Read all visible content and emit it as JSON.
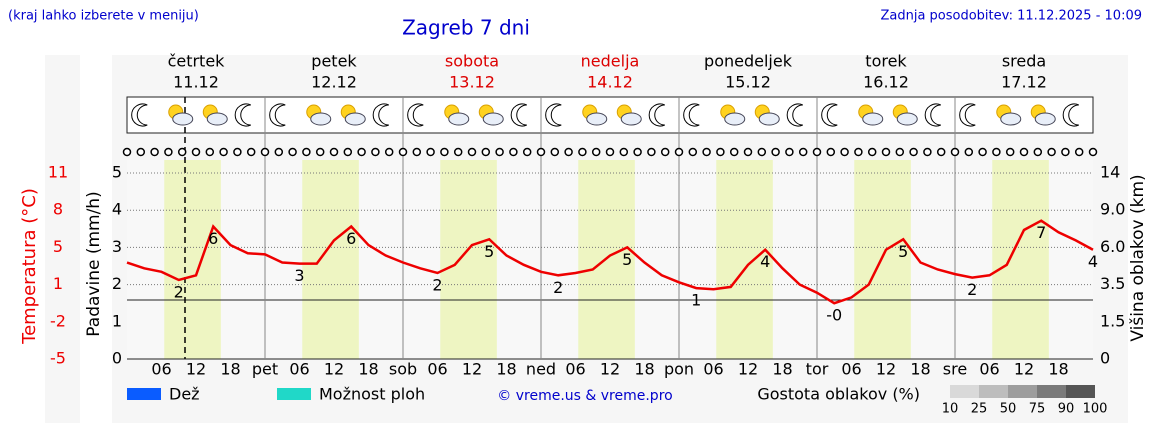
{
  "header": {
    "hint": "(kraj lahko izberete v meniju)",
    "title": "Zagreb 7 dni",
    "updated": "Zadnja posodobitev: 11.12.2025 - 10:09"
  },
  "days": [
    {
      "name": "četrtek",
      "date": "11.12",
      "color": "#000000"
    },
    {
      "name": "petek",
      "date": "12.12",
      "color": "#000000"
    },
    {
      "name": "sobota",
      "date": "13.12",
      "color": "#dd0000"
    },
    {
      "name": "nedelja",
      "date": "14.12",
      "color": "#dd0000"
    },
    {
      "name": "ponedeljek",
      "date": "15.12",
      "color": "#000000"
    },
    {
      "name": "torek",
      "date": "16.12",
      "color": "#000000"
    },
    {
      "name": "sreda",
      "date": "17.12",
      "color": "#000000"
    }
  ],
  "hours": [
    "06",
    "12",
    "18"
  ],
  "day_abbr": [
    "pet",
    "sob",
    "ned",
    "pon",
    "tor",
    "sre"
  ],
  "legend": {
    "rain": "Dež",
    "showers": "Možnost ploh",
    "credit": "© vreme.us & vreme.pro",
    "cloud_title": "Gostota oblakov (%)",
    "cloud_levels": [
      10,
      25,
      50,
      75,
      90,
      100
    ],
    "cloud_colors": [
      "#d9d9d9",
      "#bdbdbd",
      "#9d9d9d",
      "#7a7a7a",
      "#555555"
    ],
    "rain_color": "#0a5cff",
    "showers_color": "#20d8c8"
  },
  "chart_data": {
    "type": "line",
    "series": [
      {
        "name": "Temperatura (°C)",
        "color": "#ee0000",
        "values": [
          3.3,
          2.8,
          2.5,
          1.8,
          2.2,
          6.4,
          4.8,
          4.1,
          4.0,
          3.3,
          3.2,
          3.2,
          5.2,
          6.4,
          4.8,
          3.9,
          3.3,
          2.8,
          2.4,
          3.1,
          4.8,
          5.3,
          3.9,
          3.1,
          2.5,
          2.2,
          2.4,
          2.7,
          3.9,
          4.6,
          3.3,
          2.2,
          1.6,
          1.1,
          1.0,
          1.2,
          3.1,
          4.4,
          2.8,
          1.4,
          0.7,
          -0.2,
          0.3,
          1.4,
          4.4,
          5.3,
          3.3,
          2.7,
          2.3,
          2.0,
          2.2,
          3.1,
          6.1,
          6.9,
          5.9,
          5.2,
          4.4
        ],
        "value_labels": [
          null,
          null,
          null,
          "2",
          null,
          "6",
          null,
          null,
          null,
          null,
          "3",
          null,
          null,
          "6",
          null,
          null,
          null,
          null,
          "2",
          null,
          null,
          "5",
          null,
          null,
          null,
          "2",
          null,
          null,
          null,
          "5",
          null,
          null,
          null,
          "1",
          null,
          null,
          null,
          "4",
          null,
          null,
          null,
          "-0",
          null,
          null,
          null,
          "5",
          null,
          null,
          null,
          "2",
          null,
          null,
          null,
          "7",
          null,
          null,
          "4"
        ]
      }
    ],
    "ylabel": "Temperatura (°C)",
    "ylim": [
      -5,
      11
    ],
    "yticks": [
      11,
      {
        "value": 7.8,
        "label": "8"
      },
      {
        "value": 4.6,
        "label": "5"
      },
      {
        "value": 1.4,
        "label": "1"
      },
      {
        "value": -1.8,
        "label": "-2"
      },
      -5
    ],
    "precip_label": "Padavine (mm/h)",
    "precip_ylim": [
      0,
      5
    ],
    "precip_yticks": [
      5,
      4,
      3,
      2,
      1,
      0
    ],
    "cloud_label": "Višina oblakov (km)",
    "cloud_yticks": [
      14,
      {
        "value": 9,
        "label": "9.0"
      },
      {
        "value": 6,
        "label": "6.0"
      },
      3.5,
      1.5,
      0
    ],
    "grid": true
  }
}
